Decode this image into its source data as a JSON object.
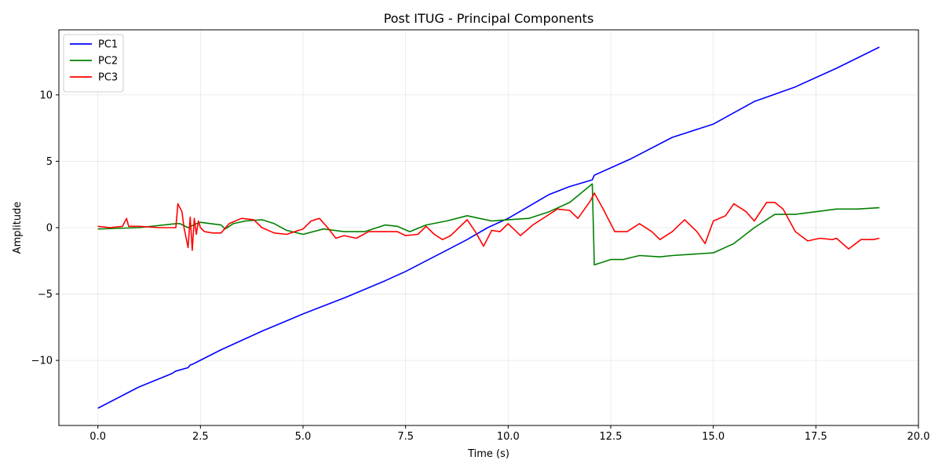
{
  "chart_data": {
    "type": "line",
    "title": "Post ITUG - Principal Components",
    "xlabel": "Time (s)",
    "ylabel": "Amplitude",
    "xlim": [
      -0.95,
      20.0
    ],
    "ylim": [
      -14.9,
      14.9
    ],
    "xticks": [
      0.0,
      2.5,
      5.0,
      7.5,
      10.0,
      12.5,
      15.0,
      17.5,
      20.0
    ],
    "xtick_labels": [
      "0.0",
      "2.5",
      "5.0",
      "7.5",
      "10.0",
      "12.5",
      "15.0",
      "17.5",
      "20.0"
    ],
    "yticks": [
      -10,
      -5,
      0,
      5,
      10
    ],
    "ytick_labels": [
      "−10",
      "−5",
      "0",
      "5",
      "10"
    ],
    "grid": true,
    "legend_position": "upper-left",
    "series": [
      {
        "name": "PC1",
        "color": "#0000ff",
        "x": [
          0.0,
          1.0,
          1.8,
          1.9,
          2.2,
          2.25,
          2.3,
          3.0,
          4.0,
          5.0,
          6.0,
          7.0,
          7.5,
          8.0,
          8.5,
          9.0,
          9.5,
          10.0,
          10.5,
          11.0,
          11.5,
          12.05,
          12.1,
          13.0,
          14.0,
          15.0,
          16.0,
          17.0,
          18.0,
          19.05
        ],
        "y": [
          -13.6,
          -12.0,
          -11.0,
          -10.8,
          -10.55,
          -10.35,
          -10.3,
          -9.2,
          -7.8,
          -6.5,
          -5.3,
          -4.0,
          -3.3,
          -2.5,
          -1.7,
          -0.9,
          0.0,
          0.7,
          1.6,
          2.5,
          3.1,
          3.6,
          3.95,
          5.2,
          6.8,
          7.8,
          9.5,
          10.6,
          12.0,
          13.6
        ]
      },
      {
        "name": "PC2",
        "color": "#008000",
        "x": [
          0.0,
          1.0,
          1.9,
          2.0,
          2.2,
          2.4,
          2.5,
          3.0,
          3.1,
          3.3,
          3.6,
          4.0,
          4.3,
          4.6,
          5.0,
          5.5,
          6.0,
          6.5,
          7.0,
          7.3,
          7.6,
          8.0,
          8.5,
          9.0,
          9.3,
          9.6,
          10.0,
          10.5,
          11.0,
          11.5,
          12.05,
          12.1,
          12.5,
          12.8,
          13.2,
          13.7,
          14.0,
          14.5,
          15.0,
          15.5,
          16.0,
          16.5,
          17.0,
          17.5,
          18.0,
          18.5,
          19.05
        ],
        "y": [
          -0.1,
          0.0,
          0.3,
          0.3,
          0.0,
          0.3,
          0.4,
          0.2,
          -0.1,
          0.3,
          0.5,
          0.6,
          0.3,
          -0.2,
          -0.5,
          -0.1,
          -0.3,
          -0.3,
          0.2,
          0.1,
          -0.3,
          0.2,
          0.5,
          0.9,
          0.7,
          0.5,
          0.6,
          0.7,
          1.2,
          1.9,
          3.3,
          -2.8,
          -2.4,
          -2.4,
          -2.1,
          -2.2,
          -2.1,
          -2.0,
          -1.9,
          -1.2,
          0.0,
          1.0,
          1.0,
          1.2,
          1.4,
          1.4,
          1.5
        ]
      },
      {
        "name": "PC3",
        "color": "#ff0000",
        "x": [
          0.0,
          0.3,
          0.6,
          0.7,
          0.75,
          1.0,
          1.5,
          1.9,
          1.95,
          2.05,
          2.1,
          2.2,
          2.25,
          2.3,
          2.35,
          2.4,
          2.45,
          2.5,
          2.6,
          2.8,
          3.0,
          3.2,
          3.5,
          3.8,
          4.0,
          4.3,
          4.6,
          5.0,
          5.2,
          5.4,
          5.6,
          5.8,
          6.0,
          6.3,
          6.6,
          7.0,
          7.3,
          7.5,
          7.8,
          8.0,
          8.2,
          8.4,
          8.6,
          8.8,
          9.0,
          9.2,
          9.4,
          9.6,
          9.8,
          10.0,
          10.3,
          10.6,
          10.9,
          11.2,
          11.5,
          11.7,
          12.0,
          12.1,
          12.3,
          12.6,
          12.9,
          13.2,
          13.5,
          13.7,
          14.0,
          14.3,
          14.6,
          14.8,
          15.0,
          15.3,
          15.5,
          15.8,
          16.0,
          16.3,
          16.5,
          16.7,
          17.0,
          17.3,
          17.6,
          17.9,
          18.0,
          18.3,
          18.6,
          18.9,
          19.05
        ],
        "y": [
          0.1,
          0.0,
          0.1,
          0.7,
          0.1,
          0.1,
          0.0,
          0.0,
          1.8,
          1.2,
          0.0,
          -1.5,
          0.8,
          -1.7,
          0.7,
          -0.5,
          0.5,
          0.0,
          -0.3,
          -0.4,
          -0.4,
          0.3,
          0.7,
          0.6,
          0.0,
          -0.4,
          -0.5,
          -0.1,
          0.5,
          0.7,
          0.0,
          -0.8,
          -0.6,
          -0.8,
          -0.3,
          -0.3,
          -0.3,
          -0.6,
          -0.5,
          0.1,
          -0.5,
          -0.9,
          -0.6,
          0.0,
          0.6,
          -0.3,
          -1.4,
          -0.2,
          -0.3,
          0.3,
          -0.6,
          0.2,
          0.8,
          1.4,
          1.3,
          0.7,
          2.0,
          2.6,
          1.5,
          -0.3,
          -0.3,
          0.3,
          -0.3,
          -0.9,
          -0.3,
          0.6,
          -0.3,
          -1.2,
          0.5,
          0.9,
          1.8,
          1.2,
          0.5,
          1.9,
          1.9,
          1.4,
          -0.3,
          -1.0,
          -0.8,
          -0.9,
          -0.8,
          -1.6,
          -0.9,
          -0.9,
          -0.8
        ]
      }
    ]
  }
}
